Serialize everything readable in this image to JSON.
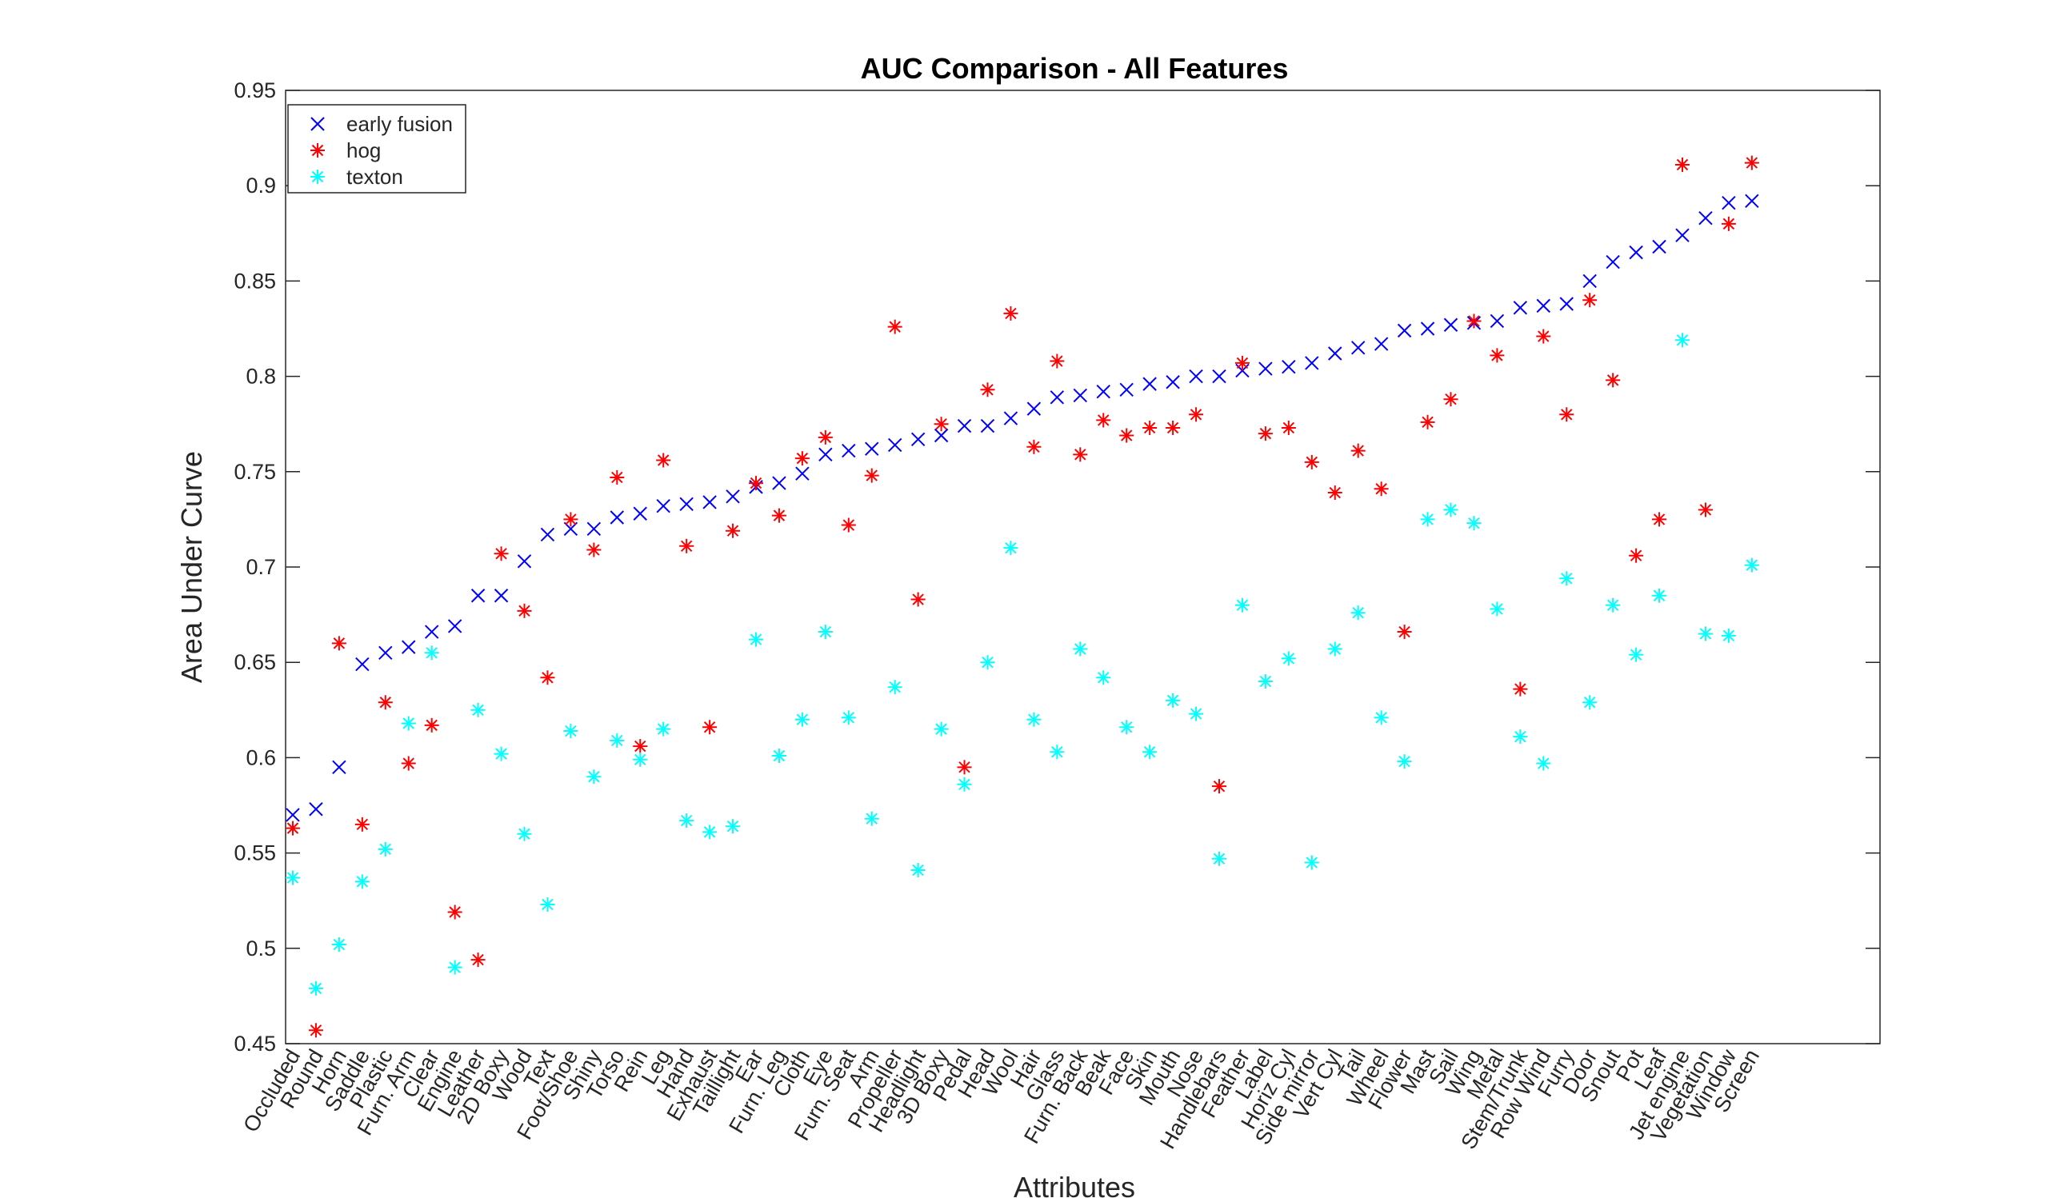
{
  "chart_data": {
    "type": "scatter",
    "title": "AUC Comparison - All Features",
    "xlabel": "Attributes",
    "ylabel": "Area Under Curve",
    "ylim": [
      0.45,
      0.95
    ],
    "yticks": [
      0.45,
      0.5,
      0.55,
      0.6,
      0.65,
      0.7,
      0.75,
      0.8,
      0.85,
      0.9,
      0.95
    ],
    "ytick_labels": [
      "0.45",
      "0.5",
      "0.55",
      "0.6",
      "0.65",
      "0.7",
      "0.75",
      "0.8",
      "0.85",
      "0.9",
      "0.95"
    ],
    "grid": false,
    "legend_position": "top-left",
    "categories": [
      "Occluded",
      "Round",
      "Horn",
      "Saddle",
      "Plastic",
      "Furn. Arm",
      "Clear",
      "Engine",
      "Leather",
      "2D Boxy",
      "Wood",
      "Text",
      "Foot/Shoe",
      "Shiny",
      "Torso",
      "Rein",
      "Leg",
      "Hand",
      "Exhaust",
      "Taillight",
      "Ear",
      "Furn. Leg",
      "Cloth",
      "Eye",
      "Furn. Seat",
      "Arm",
      "Propeller",
      "Headlight",
      "3D Boxy",
      "Pedal",
      "Head",
      "Wool",
      "Hair",
      "Glass",
      "Furn. Back",
      "Beak",
      "Face",
      "Skin",
      "Mouth",
      "Nose",
      "Handlebars",
      "Feather",
      "Label",
      "Horiz Cyl",
      "Side mirror",
      "Vert Cyl",
      "Tail",
      "Wheel",
      "Flower",
      "Mast",
      "Sail",
      "Wing",
      "Metal",
      "Stem/Trunk",
      "Row Wind",
      "Furry",
      "Door",
      "Snout",
      "Pot",
      "Leaf",
      "Jet engine",
      "Vegetation",
      "Window",
      "Screen"
    ],
    "series": [
      {
        "name": "early fusion",
        "marker": "x",
        "color": "#0000ff",
        "values": [
          0.57,
          0.573,
          0.595,
          0.649,
          0.655,
          0.658,
          0.666,
          0.669,
          0.685,
          0.685,
          0.703,
          0.717,
          0.72,
          0.72,
          0.726,
          0.728,
          0.732,
          0.733,
          0.734,
          0.737,
          0.742,
          0.744,
          0.749,
          0.759,
          0.761,
          0.762,
          0.764,
          0.767,
          0.769,
          0.774,
          0.774,
          0.778,
          0.783,
          0.789,
          0.79,
          0.792,
          0.793,
          0.796,
          0.797,
          0.8,
          0.8,
          0.803,
          0.804,
          0.805,
          0.807,
          0.812,
          0.815,
          0.817,
          0.824,
          0.825,
          0.827,
          0.828,
          0.829,
          0.836,
          0.837,
          0.838,
          0.85,
          0.86,
          0.865,
          0.868,
          0.874,
          0.883,
          0.891,
          0.892
        ]
      },
      {
        "name": "hog",
        "marker": "*",
        "color": "#ff0000",
        "values": [
          0.563,
          0.457,
          0.66,
          0.565,
          0.629,
          0.597,
          0.617,
          0.519,
          0.494,
          0.707,
          0.677,
          0.642,
          0.725,
          0.709,
          0.747,
          0.606,
          0.756,
          0.711,
          0.616,
          0.719,
          0.744,
          0.727,
          0.757,
          0.768,
          0.722,
          0.748,
          0.826,
          0.683,
          0.775,
          0.595,
          0.793,
          0.833,
          0.763,
          0.808,
          0.759,
          0.777,
          0.769,
          0.773,
          0.773,
          0.78,
          0.585,
          0.807,
          0.77,
          0.773,
          0.755,
          0.739,
          0.761,
          0.741,
          0.666,
          0.776,
          0.788,
          0.829,
          0.811,
          0.636,
          0.821,
          0.78,
          0.84,
          0.798,
          0.706,
          0.725,
          0.911,
          0.73,
          0.88,
          0.912
        ]
      },
      {
        "name": "texton",
        "marker": "*",
        "color": "#00ffff",
        "values": [
          0.537,
          0.479,
          0.502,
          0.535,
          0.552,
          0.618,
          0.655,
          0.49,
          0.625,
          0.602,
          0.56,
          0.523,
          0.614,
          0.59,
          0.609,
          0.599,
          0.615,
          0.567,
          0.561,
          0.564,
          0.662,
          0.601,
          0.62,
          0.666,
          0.621,
          0.568,
          0.637,
          0.541,
          0.615,
          0.586,
          0.65,
          0.71,
          0.62,
          0.603,
          0.657,
          0.642,
          0.616,
          0.603,
          0.63,
          0.623,
          0.547,
          0.68,
          0.64,
          0.652,
          0.545,
          0.657,
          0.676,
          0.621,
          0.598,
          0.725,
          0.73,
          0.723,
          0.678,
          0.611,
          0.597,
          0.694,
          0.629,
          0.68,
          0.654,
          0.685,
          0.819,
          0.665,
          0.664,
          0.701
        ]
      }
    ]
  }
}
